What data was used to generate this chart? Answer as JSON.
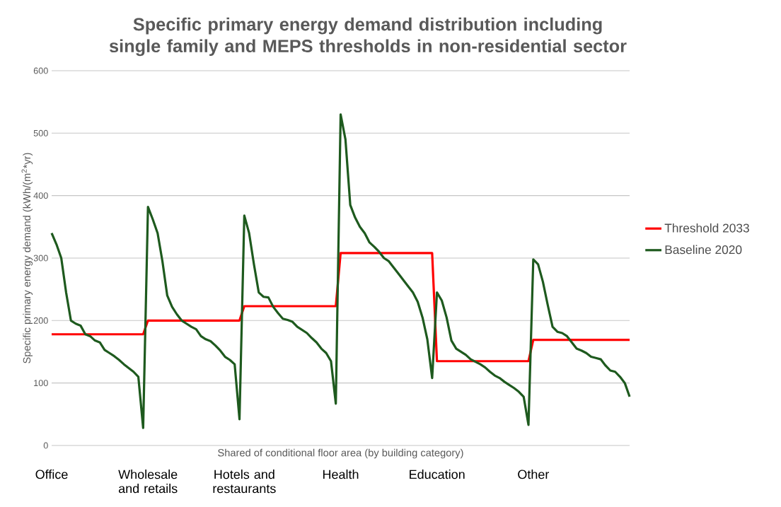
{
  "chart_data": {
    "type": "line",
    "title": "Specific primary energy demand distribution including single family and MEPS thresholds in non-residential sector",
    "xlabel": "Shared of conditional floor area (by building category)",
    "ylabel": "Specific primary energy demand  (kWh/(m$^{2}$*yr)",
    "categories": [
      "Office",
      null,
      null,
      null,
      null,
      null,
      null,
      null,
      null,
      null,
      null,
      null,
      null,
      null,
      null,
      null,
      null,
      null,
      null,
      null,
      "Wholesale and retails",
      null,
      null,
      null,
      null,
      null,
      null,
      null,
      null,
      null,
      null,
      null,
      null,
      null,
      null,
      null,
      null,
      null,
      null,
      null,
      "Hotels and restaurants",
      null,
      null,
      null,
      null,
      null,
      null,
      null,
      null,
      null,
      null,
      null,
      null,
      null,
      null,
      null,
      null,
      null,
      null,
      null,
      "Health",
      null,
      null,
      null,
      null,
      null,
      null,
      null,
      null,
      null,
      null,
      null,
      null,
      null,
      null,
      null,
      null,
      null,
      null,
      null,
      "Education",
      null,
      null,
      null,
      null,
      null,
      null,
      null,
      null,
      null,
      null,
      null,
      null,
      null,
      null,
      null,
      null,
      null,
      null,
      null,
      "Other",
      null,
      null,
      null,
      null,
      null,
      null,
      null,
      null,
      null,
      null,
      null,
      null,
      null,
      null,
      null,
      null,
      null,
      null,
      null,
      null
    ],
    "series": [
      {
        "name": "Threshold 2033",
        "color": "#ff0000",
        "values": [
          178,
          178,
          178,
          178,
          178,
          178,
          178,
          178,
          178,
          178,
          178,
          178,
          178,
          178,
          178,
          178,
          178,
          178,
          178,
          178,
          200,
          200,
          200,
          200,
          200,
          200,
          200,
          200,
          200,
          200,
          200,
          200,
          200,
          200,
          200,
          200,
          200,
          200,
          200,
          200,
          223,
          223,
          223,
          223,
          223,
          223,
          223,
          223,
          223,
          223,
          223,
          223,
          223,
          223,
          223,
          223,
          223,
          223,
          223,
          223,
          308,
          308,
          308,
          308,
          308,
          308,
          308,
          308,
          308,
          308,
          308,
          308,
          308,
          308,
          308,
          308,
          308,
          308,
          308,
          308,
          135,
          135,
          135,
          135,
          135,
          135,
          135,
          135,
          135,
          135,
          135,
          135,
          135,
          135,
          135,
          135,
          135,
          135,
          135,
          135,
          169,
          169,
          169,
          169,
          169,
          169,
          169,
          169,
          169,
          169,
          169,
          169,
          169,
          169,
          169,
          169,
          169,
          169,
          169,
          169,
          169
        ]
      },
      {
        "name": "Baseline 2020",
        "color": "#1e5a1e",
        "values": [
          340,
          322,
          300,
          245,
          200,
          195,
          192,
          178,
          175,
          168,
          165,
          153,
          148,
          143,
          137,
          130,
          124,
          118,
          110,
          28,
          382,
          362,
          340,
          295,
          240,
          222,
          210,
          200,
          195,
          190,
          186,
          175,
          170,
          167,
          160,
          152,
          142,
          137,
          130,
          42,
          368,
          340,
          290,
          245,
          238,
          237,
          222,
          212,
          203,
          201,
          198,
          190,
          185,
          180,
          172,
          165,
          155,
          148,
          135,
          67,
          530,
          490,
          385,
          365,
          350,
          340,
          325,
          318,
          310,
          300,
          295,
          285,
          275,
          265,
          255,
          245,
          230,
          205,
          170,
          108,
          245,
          232,
          205,
          168,
          155,
          150,
          145,
          138,
          134,
          130,
          125,
          118,
          112,
          108,
          102,
          97,
          92,
          86,
          78,
          33,
          298,
          290,
          262,
          225,
          190,
          182,
          180,
          175,
          165,
          155,
          152,
          148,
          142,
          140,
          138,
          128,
          120,
          118,
          110,
          100,
          78
        ]
      }
    ],
    "ylim": [
      0,
      600
    ],
    "yticks": [
      0,
      100,
      200,
      300,
      400,
      500,
      600
    ],
    "grid": "y",
    "legend": "right"
  }
}
